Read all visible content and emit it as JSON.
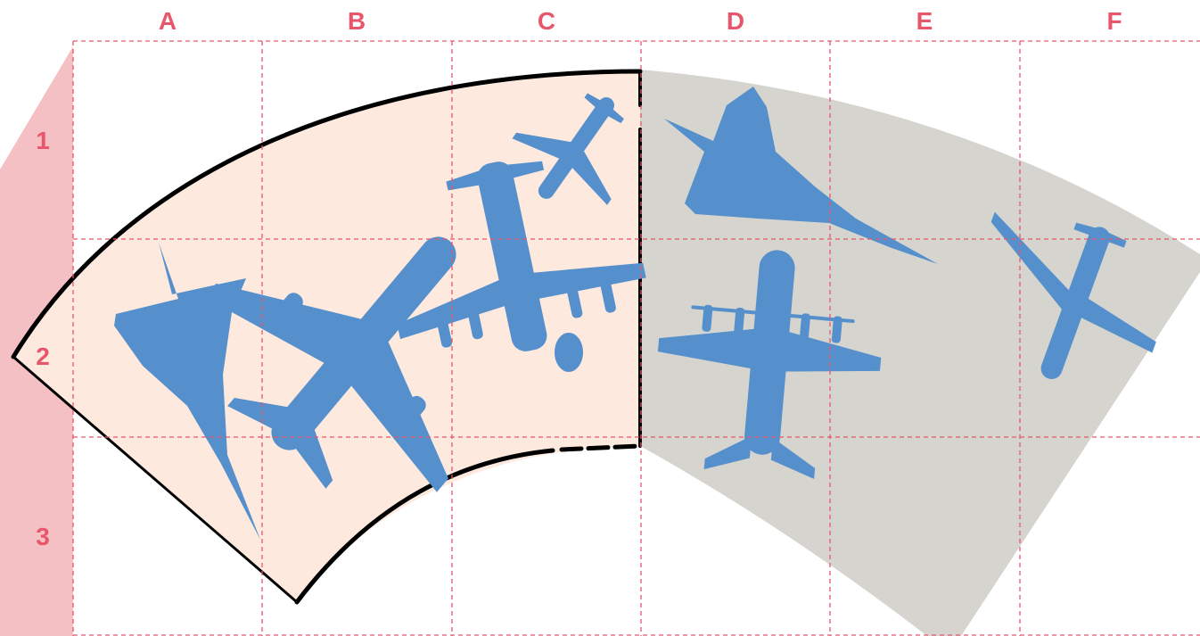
{
  "grid": {
    "columns": [
      "A",
      "B",
      "C",
      "D",
      "E",
      "F"
    ],
    "rows": [
      "1",
      "2",
      "3"
    ],
    "line_color": "#e8566c",
    "label_color": "#e8566c"
  },
  "colors": {
    "left_band": "#f5c0c4",
    "arc_left_fill": "#fde9de",
    "arc_right_fill": "#d6d4cf",
    "aircraft": "#5590cc",
    "outline": "#000000"
  },
  "aircraft": [
    {
      "name": "delta-wing-jet-a2",
      "icon": "airplane-icon"
    },
    {
      "name": "widebody-jet-b2",
      "icon": "airplane-icon"
    },
    {
      "name": "four-engine-prop-c2",
      "icon": "airplane-icon"
    },
    {
      "name": "small-jet-c1",
      "icon": "airplane-icon"
    },
    {
      "name": "supersonic-jet-d1",
      "icon": "airplane-icon"
    },
    {
      "name": "turboprop-transport-d2",
      "icon": "airplane-icon"
    },
    {
      "name": "business-jet-f2",
      "icon": "airplane-icon"
    }
  ]
}
